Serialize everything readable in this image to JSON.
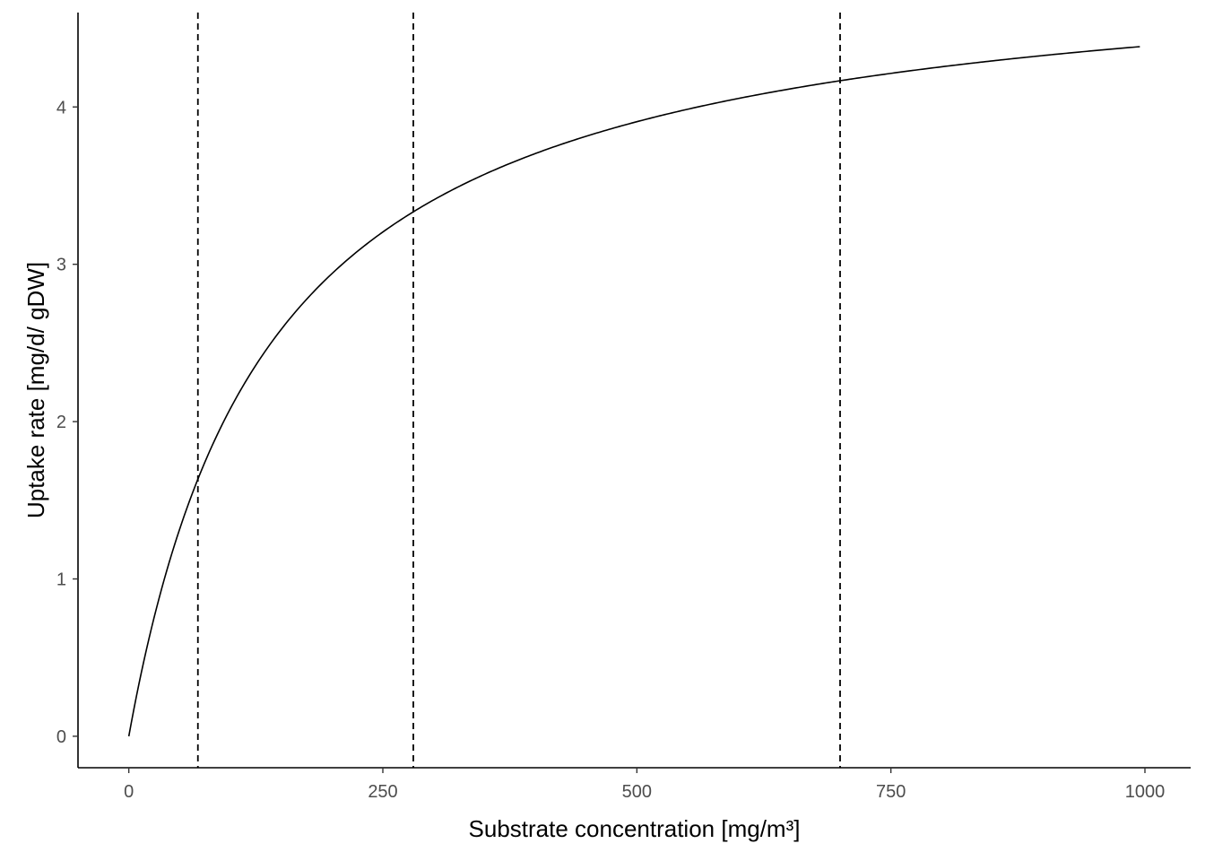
{
  "chart_data": {
    "type": "line",
    "title": "",
    "xlabel": "Substrate concentration [mg/m³]",
    "ylabel": "Uptake rate [mg/d/ gDW]",
    "xlim": [
      -50,
      1045
    ],
    "ylim": [
      -0.2,
      4.6
    ],
    "x_ticks": [
      0,
      250,
      500,
      750,
      1000
    ],
    "y_ticks": [
      0,
      1,
      2,
      3,
      4
    ],
    "x_tick_labels": [
      "0",
      "250",
      "500",
      "750",
      "1000"
    ],
    "y_tick_labels": [
      "0",
      "1",
      "2",
      "3",
      "4"
    ],
    "grid": false,
    "legend": "none",
    "series": [
      {
        "model": "Michaelis-Menten",
        "vmax": 5.0,
        "km": 140,
        "x_range": [
          0,
          995
        ],
        "color": "#000000"
      }
    ],
    "vertical_reference_lines": [
      {
        "x": 68,
        "style": "dashed",
        "color": "#000000"
      },
      {
        "x": 280,
        "style": "dashed",
        "color": "#000000"
      },
      {
        "x": 700,
        "style": "dashed",
        "color": "#000000"
      }
    ]
  }
}
